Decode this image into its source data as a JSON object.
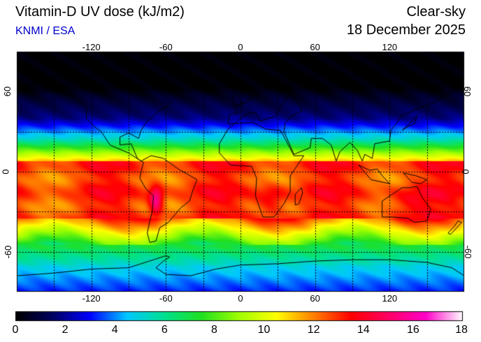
{
  "header": {
    "title": "Vitamin-D UV dose (kJ/m2)",
    "credit": "KNMI / ESA",
    "condition": "Clear-sky",
    "date": "18 December 2025"
  },
  "colors": {
    "credit": "#0000cc",
    "grid": "#000000",
    "coast": "#000000"
  },
  "map": {
    "projection": "equirectangular",
    "lon_range": [
      -180,
      180
    ],
    "lat_range": [
      -90,
      90
    ],
    "gridlines": "dashed every 30 degrees",
    "lon_ticks": [
      "-120",
      "-60",
      "0",
      "60",
      "120"
    ],
    "lat_ticks": [
      "60",
      "0",
      "-60"
    ],
    "lon_tick_values": [
      -120,
      -60,
      0,
      60,
      120
    ],
    "lat_tick_values": [
      60,
      0,
      -60
    ]
  },
  "colorbar": {
    "min": 0,
    "max": 18,
    "labels": [
      "0",
      "2",
      "4",
      "6",
      "8",
      "10",
      "12",
      "14",
      "16",
      "18"
    ],
    "stops": [
      "#000000",
      "#000060",
      "#0000ff",
      "#00c8ff",
      "#00e090",
      "#20e020",
      "#a0ff00",
      "#ffff00",
      "#ff8000",
      "#ff0000",
      "#ff0066",
      "#ff00c8",
      "#ffffff"
    ]
  }
}
